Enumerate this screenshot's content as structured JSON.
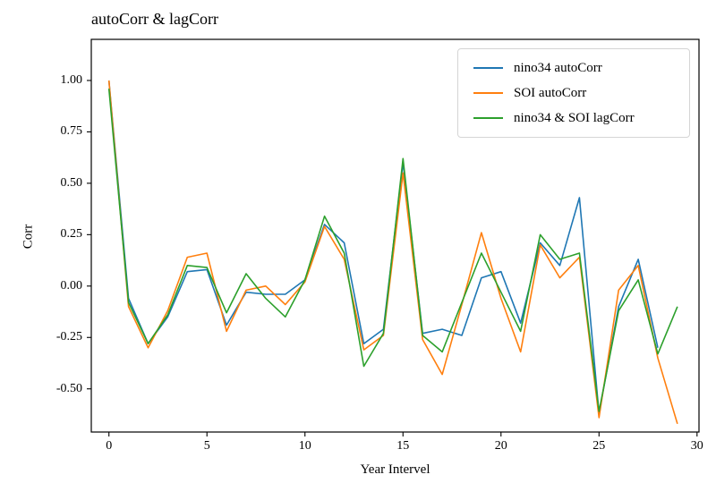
{
  "chart_data": {
    "type": "line",
    "title": "autoCorr & lagCorr",
    "xlabel": "Year Intervel",
    "ylabel": "Corr",
    "xlim": [
      -0.9,
      30.1
    ],
    "ylim": [
      -0.71,
      1.2
    ],
    "xticks": {
      "values": [
        0,
        5,
        10,
        15,
        20,
        25,
        30
      ],
      "labels": [
        "0",
        "5",
        "10",
        "15",
        "20",
        "25",
        "30"
      ]
    },
    "yticks": {
      "values": [
        1.0,
        0.75,
        0.5,
        0.25,
        0.0,
        -0.25,
        -0.5
      ],
      "labels": [
        "1.00",
        "0.75",
        "0.50",
        "0.25",
        "0.00",
        "-0.25",
        "-0.50"
      ]
    },
    "grid": false,
    "legend_position": "upper right",
    "series": [
      {
        "name": "nino34 autoCorr",
        "color": "#1f77b4",
        "x": [
          0,
          1,
          2,
          3,
          4,
          5,
          6,
          7,
          8,
          9,
          10,
          11,
          12,
          13,
          14,
          15,
          16,
          17,
          18,
          19,
          20,
          21,
          22,
          23,
          24,
          25,
          26,
          27,
          28
        ],
        "y": [
          1.0,
          -0.06,
          -0.28,
          -0.15,
          0.07,
          0.08,
          -0.19,
          -0.03,
          -0.04,
          -0.04,
          0.03,
          0.3,
          0.21,
          -0.28,
          -0.21,
          0.6,
          -0.23,
          -0.21,
          -0.24,
          0.04,
          0.07,
          -0.18,
          0.21,
          0.1,
          0.43,
          -0.62,
          -0.1,
          0.13,
          -0.3
        ]
      },
      {
        "name": "SOI autoCorr",
        "color": "#ff7f0e",
        "x": [
          0,
          1,
          2,
          3,
          4,
          5,
          6,
          7,
          8,
          9,
          10,
          11,
          12,
          13,
          14,
          15,
          16,
          17,
          18,
          19,
          20,
          21,
          22,
          23,
          24,
          25,
          26,
          27,
          28,
          29
        ],
        "y": [
          1.0,
          -0.1,
          -0.3,
          -0.12,
          0.14,
          0.16,
          -0.22,
          -0.02,
          0.0,
          -0.09,
          0.02,
          0.29,
          0.13,
          -0.31,
          -0.24,
          0.55,
          -0.26,
          -0.43,
          -0.09,
          0.26,
          -0.06,
          -0.32,
          0.2,
          0.04,
          0.14,
          -0.64,
          -0.02,
          0.1,
          -0.35,
          -0.67
        ]
      },
      {
        "name": "nino34 & SOI lagCorr",
        "color": "#2ca02c",
        "x": [
          0,
          1,
          2,
          3,
          4,
          5,
          6,
          7,
          8,
          9,
          10,
          11,
          12,
          13,
          14,
          15,
          16,
          17,
          18,
          19,
          20,
          21,
          22,
          23,
          24,
          25,
          26,
          27,
          28,
          29
        ],
        "y": [
          0.96,
          -0.08,
          -0.28,
          -0.14,
          0.1,
          0.09,
          -0.13,
          0.06,
          -0.06,
          -0.15,
          0.03,
          0.34,
          0.16,
          -0.39,
          -0.23,
          0.62,
          -0.24,
          -0.32,
          -0.08,
          0.16,
          -0.03,
          -0.22,
          0.25,
          0.13,
          0.16,
          -0.61,
          -0.12,
          0.03,
          -0.33,
          -0.1
        ]
      }
    ],
    "line_width": 1.6,
    "colors": {
      "spine": "#000000",
      "tick": "#000000",
      "legend_border": "#d5d5d5"
    }
  }
}
